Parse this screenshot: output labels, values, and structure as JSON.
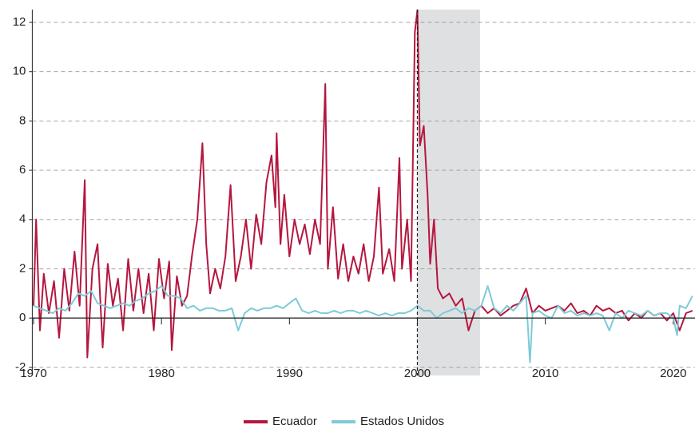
{
  "chart_data": {
    "type": "line",
    "xlim": [
      1969.9,
      2021.7
    ],
    "xticks": [
      1970,
      1980,
      1990,
      2000,
      2010,
      2020
    ],
    "ylim": [
      -2.33,
      12.52
    ],
    "yticks": [
      -2,
      0,
      2,
      4,
      6,
      8,
      10,
      12
    ],
    "grid": true,
    "shaded_span": [
      2000,
      2004.9
    ],
    "vline": 2000,
    "legend": "bottom",
    "series": [
      {
        "name": "Ecuador",
        "color": "#b5173f",
        "x": [
          1970.0,
          1970.2,
          1970.5,
          1970.8,
          1971.2,
          1971.6,
          1972.0,
          1972.4,
          1972.8,
          1973.2,
          1973.6,
          1974.0,
          1974.2,
          1974.6,
          1975.0,
          1975.4,
          1975.8,
          1976.2,
          1976.6,
          1977.0,
          1977.4,
          1977.8,
          1978.2,
          1978.6,
          1979.0,
          1979.4,
          1979.8,
          1980.2,
          1980.6,
          1980.8,
          1981.2,
          1981.6,
          1982.0,
          1982.4,
          1982.8,
          1983.2,
          1983.5,
          1983.8,
          1984.2,
          1984.6,
          1985.0,
          1985.4,
          1985.8,
          1986.2,
          1986.6,
          1987.0,
          1987.4,
          1987.8,
          1988.2,
          1988.6,
          1988.9,
          1989.0,
          1989.3,
          1989.6,
          1990.0,
          1990.4,
          1990.8,
          1991.2,
          1991.6,
          1992.0,
          1992.4,
          1992.8,
          1993.0,
          1993.4,
          1993.8,
          1994.2,
          1994.6,
          1995.0,
          1995.4,
          1995.8,
          1996.2,
          1996.6,
          1997.0,
          1997.3,
          1997.8,
          1998.2,
          1998.6,
          1998.8,
          1999.2,
          1999.5,
          1999.8,
          2000.0,
          2000.2,
          2000.5,
          2000.8,
          2001.0,
          2001.3,
          2001.6,
          2002.0,
          2002.5,
          2003.0,
          2003.5,
          2004.0,
          2004.5,
          2005.0,
          2005.5,
          2006.0,
          2006.5,
          2007.0,
          2007.5,
          2008.0,
          2008.5,
          2009.0,
          2009.5,
          2010.0,
          2010.5,
          2011.0,
          2011.5,
          2012.0,
          2012.5,
          2013.0,
          2013.5,
          2014.0,
          2014.5,
          2015.0,
          2015.5,
          2016.0,
          2016.5,
          2017.0,
          2017.5,
          2018.0,
          2018.5,
          2019.0,
          2019.5,
          2020.0,
          2020.5,
          2021.0,
          2021.5
        ],
        "values": [
          0.5,
          4.0,
          -0.5,
          1.8,
          0.2,
          1.5,
          -0.8,
          2.0,
          0.3,
          2.7,
          0.5,
          5.6,
          -1.6,
          2.0,
          3.0,
          -1.2,
          2.2,
          0.5,
          1.6,
          -0.5,
          2.4,
          0.3,
          2.0,
          0.2,
          1.8,
          -0.5,
          2.4,
          0.8,
          2.3,
          -1.3,
          1.7,
          0.5,
          0.9,
          2.6,
          4.0,
          7.1,
          3.0,
          1.0,
          2.0,
          1.2,
          2.5,
          5.4,
          1.5,
          2.5,
          4.0,
          2.0,
          4.2,
          3.0,
          5.5,
          6.6,
          4.5,
          7.5,
          3.0,
          5.0,
          2.5,
          4.0,
          3.0,
          3.8,
          2.6,
          4.0,
          3.0,
          9.5,
          2.0,
          4.5,
          1.6,
          3.0,
          1.5,
          2.5,
          1.8,
          3.0,
          1.5,
          2.5,
          5.3,
          1.8,
          2.8,
          1.5,
          6.5,
          2.0,
          4.0,
          1.5,
          11.6,
          12.5,
          7.0,
          7.8,
          5.0,
          2.2,
          4.0,
          1.2,
          0.8,
          1.0,
          0.5,
          0.8,
          -0.5,
          0.3,
          0.5,
          0.2,
          0.4,
          0.1,
          0.3,
          0.5,
          0.6,
          1.2,
          0.2,
          0.5,
          0.3,
          0.4,
          0.5,
          0.3,
          0.6,
          0.2,
          0.3,
          0.1,
          0.5,
          0.3,
          0.4,
          0.2,
          0.3,
          -0.1,
          0.2,
          0.0,
          0.3,
          0.1,
          0.2,
          -0.1,
          0.2,
          -0.5,
          0.2,
          0.3
        ]
      },
      {
        "name": "Estados Unidos",
        "color": "#7ecbd6",
        "x": [
          1970.0,
          1970.5,
          1971.0,
          1971.5,
          1972.0,
          1972.5,
          1973.0,
          1973.5,
          1974.0,
          1974.5,
          1975.0,
          1975.5,
          1976.0,
          1976.5,
          1977.0,
          1977.5,
          1978.0,
          1978.5,
          1979.0,
          1979.5,
          1980.0,
          1980.5,
          1981.0,
          1981.5,
          1982.0,
          1982.5,
          1983.0,
          1983.5,
          1984.0,
          1984.5,
          1985.0,
          1985.5,
          1986.0,
          1986.5,
          1987.0,
          1987.5,
          1988.0,
          1988.5,
          1989.0,
          1989.5,
          1990.0,
          1990.5,
          1991.0,
          1991.5,
          1992.0,
          1992.5,
          1993.0,
          1993.5,
          1994.0,
          1994.5,
          1995.0,
          1995.5,
          1996.0,
          1996.5,
          1997.0,
          1997.5,
          1998.0,
          1998.5,
          1999.0,
          1999.5,
          2000.0,
          2000.5,
          2001.0,
          2001.5,
          2002.0,
          2002.5,
          2003.0,
          2003.5,
          2004.0,
          2004.5,
          2005.0,
          2005.5,
          2006.0,
          2006.5,
          2007.0,
          2007.5,
          2008.0,
          2008.5,
          2008.8,
          2009.0,
          2009.5,
          2010.0,
          2010.5,
          2011.0,
          2011.5,
          2012.0,
          2012.5,
          2013.0,
          2013.5,
          2014.0,
          2014.5,
          2015.0,
          2015.5,
          2016.0,
          2016.5,
          2017.0,
          2017.5,
          2018.0,
          2018.5,
          2019.0,
          2019.5,
          2020.0,
          2020.3,
          2020.5,
          2021.0,
          2021.5
        ],
        "values": [
          0.5,
          0.4,
          0.3,
          0.2,
          0.4,
          0.3,
          0.6,
          1.0,
          0.9,
          1.1,
          0.6,
          0.5,
          0.4,
          0.5,
          0.6,
          0.5,
          0.7,
          0.8,
          1.0,
          1.1,
          1.3,
          0.9,
          0.9,
          0.8,
          0.4,
          0.5,
          0.3,
          0.4,
          0.4,
          0.3,
          0.3,
          0.4,
          -0.5,
          0.2,
          0.4,
          0.3,
          0.4,
          0.4,
          0.5,
          0.4,
          0.6,
          0.8,
          0.3,
          0.2,
          0.3,
          0.2,
          0.2,
          0.3,
          0.2,
          0.3,
          0.3,
          0.2,
          0.3,
          0.2,
          0.1,
          0.2,
          0.1,
          0.2,
          0.2,
          0.3,
          0.5,
          0.3,
          0.3,
          0.0,
          0.2,
          0.3,
          0.4,
          0.2,
          0.4,
          0.3,
          0.5,
          1.3,
          0.4,
          0.2,
          0.5,
          0.3,
          0.6,
          0.9,
          -1.8,
          0.2,
          0.3,
          0.1,
          0.0,
          0.5,
          0.2,
          0.3,
          0.1,
          0.2,
          0.1,
          0.2,
          0.1,
          -0.5,
          0.2,
          0.0,
          0.3,
          0.2,
          0.1,
          0.3,
          0.1,
          0.2,
          0.2,
          0.0,
          -0.7,
          0.5,
          0.4,
          0.9
        ]
      }
    ]
  }
}
